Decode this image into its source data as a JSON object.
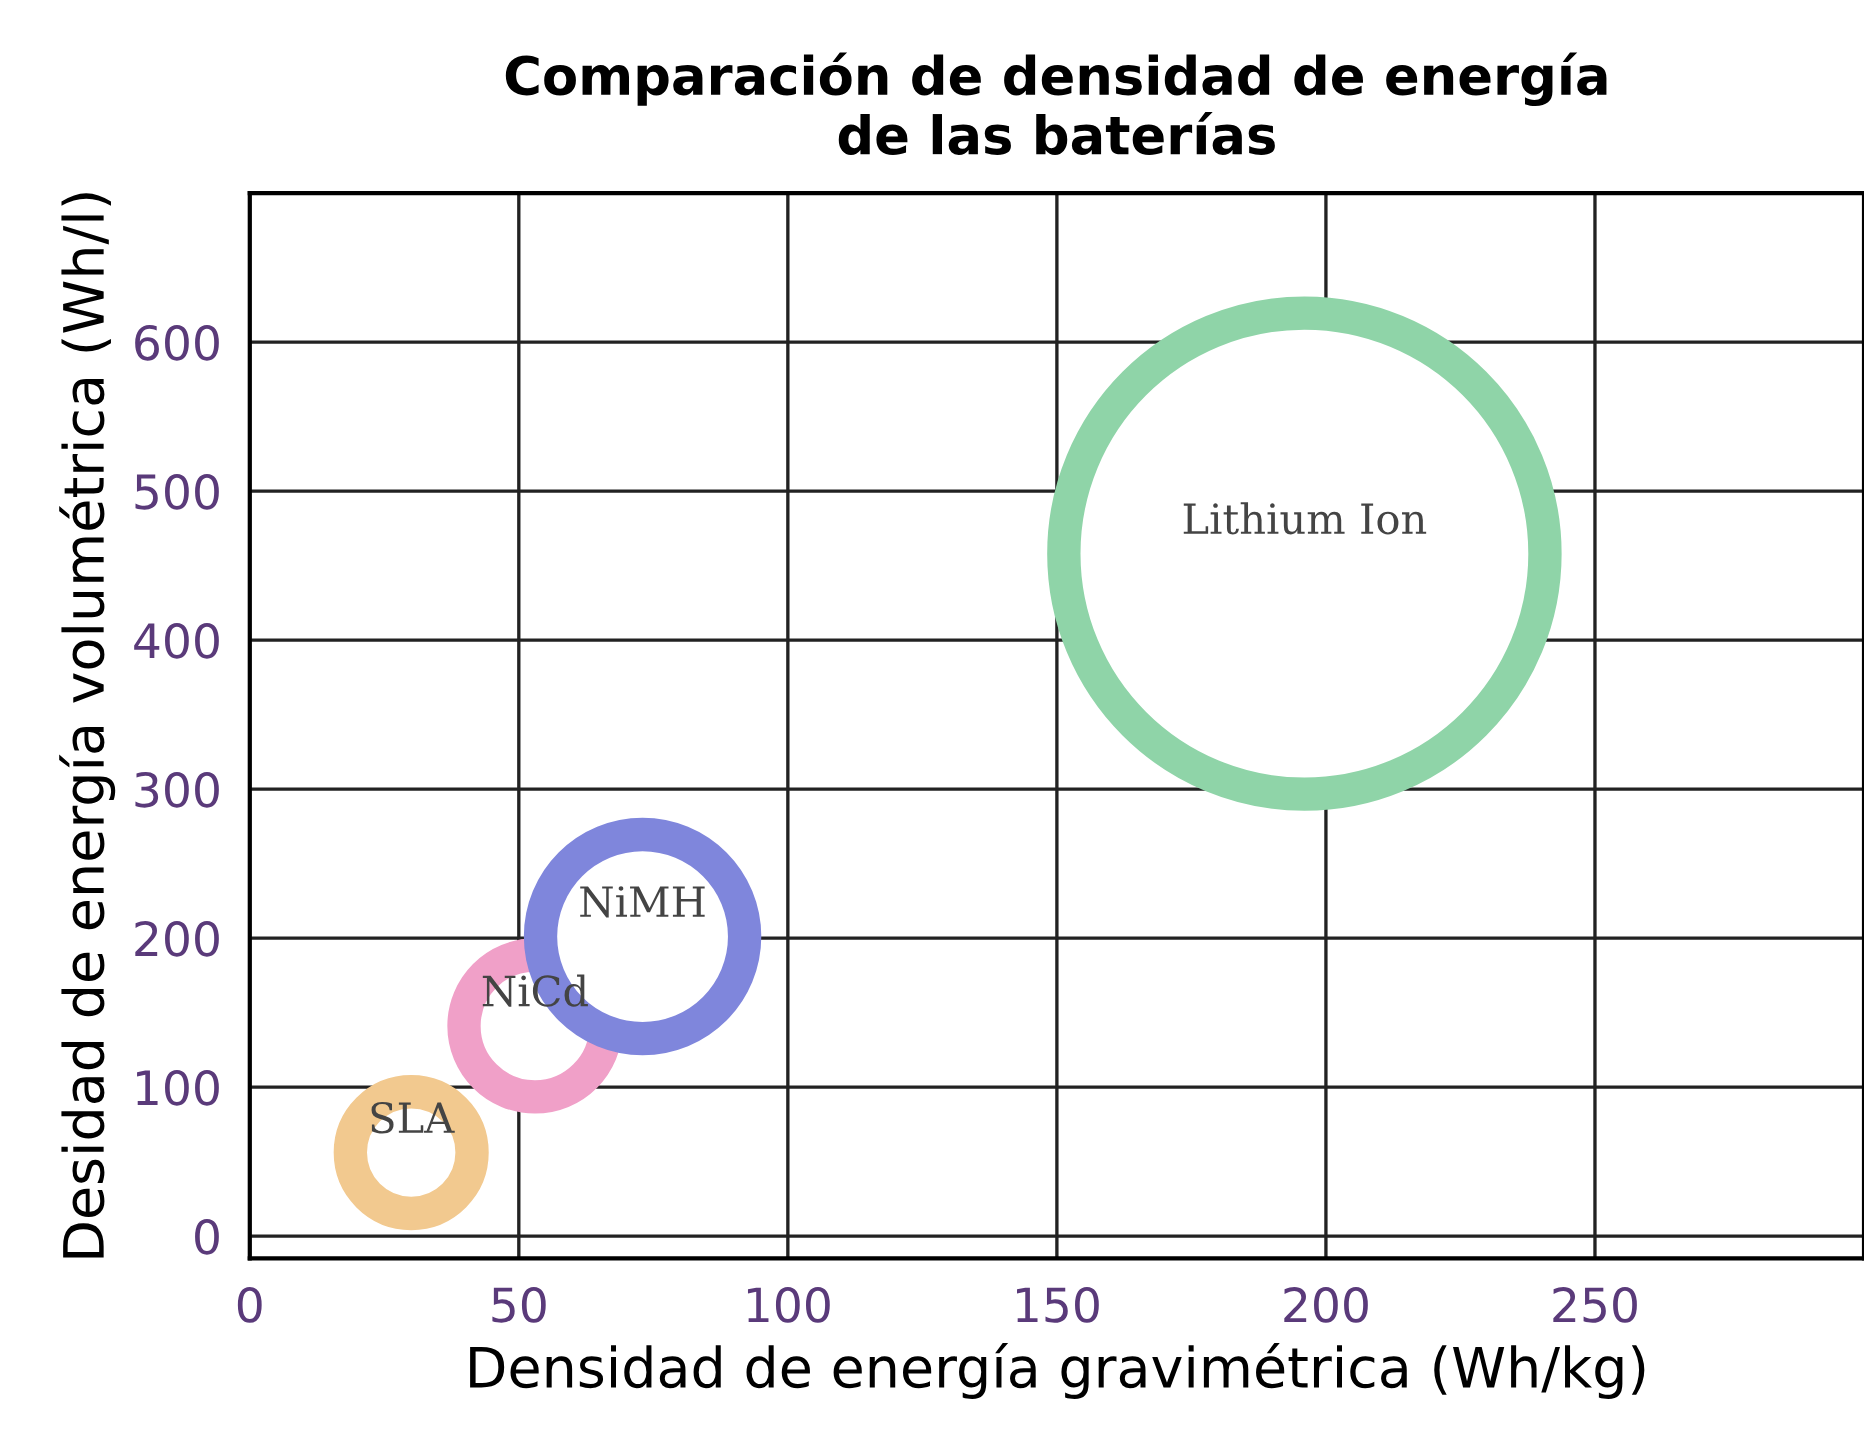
{
  "chart_data": {
    "type": "bubble",
    "title": "Comparación de densidad de energía\nde las baterías",
    "xlabel": "Densidad de energía gravimétrica (Wh/kg)",
    "ylabel": "Desidad de energía volumétrica (Wh/l)",
    "series": [
      {
        "name": "SLA",
        "color": "#f2c98f",
        "x": [
          30
        ],
        "values": [
          56
        ],
        "sizes": [
          0.064
        ]
      },
      {
        "name": "NiCd",
        "color": "#f0a0c8",
        "x": [
          53
        ],
        "values": [
          141
        ],
        "sizes": [
          0.087
        ]
      },
      {
        "name": "NiMH",
        "color": "#7f86dc",
        "x": [
          73
        ],
        "values": [
          201
        ],
        "sizes": [
          0.18
        ]
      },
      {
        "name": "Lithium Ion",
        "color": "#8fd4a8",
        "x": [
          196
        ],
        "values": [
          458
        ],
        "sizes": [
          1
        ]
      }
    ],
    "xlim": [
      0,
      300
    ],
    "ylim": [
      -15,
      700
    ],
    "xticks": [
      0,
      50,
      100,
      150,
      200,
      250
    ],
    "yticks": [
      0,
      100,
      200,
      300,
      400,
      500,
      600
    ],
    "grid": true,
    "marker": "circle"
  }
}
